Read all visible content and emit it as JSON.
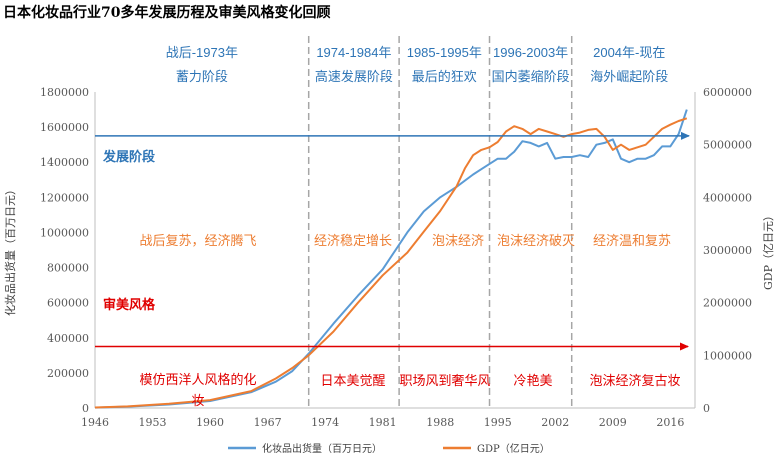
{
  "chart_data": {
    "type": "line",
    "title": "日本化妆品行业70多年发展历程及审美风格变化回顾",
    "xlabel": "",
    "ylabel_left": "化妆品出货量（百万日元）",
    "ylabel_right": "GDP（亿日元）",
    "x_ticks": [
      "1946",
      "1953",
      "1960",
      "1967",
      "1974",
      "1981",
      "1988",
      "1995",
      "2002",
      "2009",
      "2016"
    ],
    "x_tick_values": [
      1946,
      1953,
      1960,
      1967,
      1974,
      1981,
      1988,
      1995,
      2002,
      2009,
      2016
    ],
    "xlim": [
      1946,
      2019
    ],
    "ylim_left": [
      0,
      1800000
    ],
    "ylim_right": [
      0,
      6000000
    ],
    "y_ticks_left": [
      "0",
      "200000",
      "400000",
      "600000",
      "800000",
      "1000000",
      "1200000",
      "1400000",
      "1600000",
      "1800000"
    ],
    "y_tick_values_left": [
      0,
      200000,
      400000,
      600000,
      800000,
      1000000,
      1200000,
      1400000,
      1600000,
      1800000
    ],
    "y_ticks_right": [
      "0",
      "1000000",
      "2000000",
      "3000000",
      "4000000",
      "5000000",
      "6000000"
    ],
    "y_tick_values_right": [
      0,
      1000000,
      2000000,
      3000000,
      4000000,
      5000000,
      6000000
    ],
    "series": [
      {
        "name": "化妆品出货量（百万日元）",
        "axis": "left",
        "color": "#5b9bd5",
        "x": [
          1946,
          1950,
          1955,
          1960,
          1965,
          1968,
          1970,
          1972,
          1975,
          1978,
          1981,
          1984,
          1986,
          1988,
          1990,
          1992,
          1993,
          1995,
          1996,
          1997,
          1998,
          1999,
          2000,
          2001,
          2002,
          2003,
          2004,
          2005,
          2006,
          2007,
          2008,
          2009,
          2010,
          2011,
          2012,
          2013,
          2014,
          2015,
          2016,
          2017,
          2018
        ],
        "values": [
          2000,
          8000,
          20000,
          40000,
          90000,
          150000,
          210000,
          310000,
          480000,
          640000,
          790000,
          1000000,
          1120000,
          1200000,
          1260000,
          1330000,
          1360000,
          1420000,
          1420000,
          1460000,
          1520000,
          1510000,
          1490000,
          1510000,
          1420000,
          1430000,
          1430000,
          1440000,
          1430000,
          1500000,
          1510000,
          1530000,
          1420000,
          1400000,
          1420000,
          1420000,
          1440000,
          1490000,
          1490000,
          1560000,
          1700000
        ]
      },
      {
        "name": "GDP（亿日元）",
        "axis": "right",
        "color": "#ed7d31",
        "x": [
          1946,
          1950,
          1955,
          1960,
          1965,
          1968,
          1970,
          1972,
          1975,
          1978,
          1981,
          1984,
          1986,
          1988,
          1990,
          1991,
          1992,
          1993,
          1994,
          1995,
          1996,
          1997,
          1998,
          1999,
          2000,
          2001,
          2002,
          2003,
          2004,
          2005,
          2006,
          2007,
          2008,
          2009,
          2010,
          2011,
          2012,
          2013,
          2014,
          2015,
          2016,
          2017,
          2018
        ],
        "values": [
          10000,
          30000,
          80000,
          150000,
          320000,
          560000,
          760000,
          1000000,
          1450000,
          2000000,
          2520000,
          2950000,
          3350000,
          3740000,
          4210000,
          4550000,
          4800000,
          4900000,
          4950000,
          5050000,
          5250000,
          5350000,
          5300000,
          5200000,
          5300000,
          5250000,
          5200000,
          5150000,
          5200000,
          5230000,
          5280000,
          5300000,
          5150000,
          4900000,
          5000000,
          4900000,
          4950000,
          5000000,
          5150000,
          5300000,
          5380000,
          5450000,
          5500000
        ]
      }
    ],
    "legend_placement": "bottom"
  },
  "eras": [
    {
      "line1": "战后-1973年",
      "line2": "蓄力阶段"
    },
    {
      "line1": "1974-1984年",
      "line2": "高速发展阶段"
    },
    {
      "line1": "1985-1995年",
      "line2": "最后的狂欢"
    },
    {
      "line1": "1996-2003年",
      "line2": "国内萎缩阶段"
    },
    {
      "line1": "2004年-现在",
      "line2": "海外崛起阶段"
    }
  ],
  "era_boundaries": [
    1972,
    1983,
    1994,
    2004
  ],
  "development_label": "发展阶段",
  "development_phases": [
    "战后复苏，经济腾飞",
    "经济稳定增长",
    "泡沫经济",
    "泡沫经济破灭",
    "经济温和复苏"
  ],
  "aesthetic_label": "审美风格",
  "aesthetic_styles": [
    "模仿西洋人风格的化妆",
    "日本美觉醒",
    "职场风到奢华风",
    "冷艳美",
    "泡沫经济复古妆"
  ],
  "arrow_levels": {
    "development_left": 1550000,
    "aesthetic_left": 350000
  },
  "colors": {
    "blue": "#2e75b6",
    "red": "#e00000",
    "orange": "#ed7d31",
    "line_blue": "#5b9bd5"
  }
}
